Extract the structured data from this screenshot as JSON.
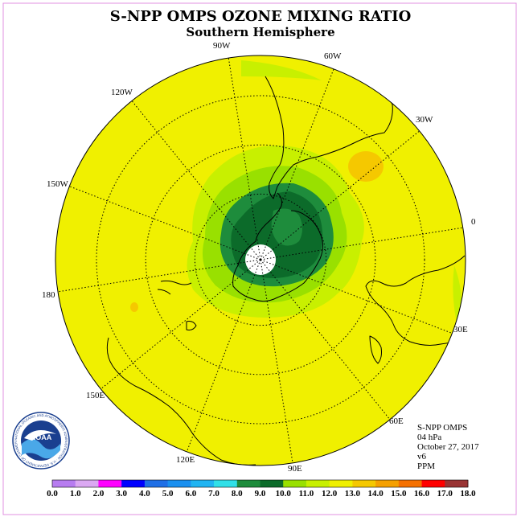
{
  "title": "S-NPP OMPS OZONE MIXING RATIO",
  "subtitle": "Southern Hemisphere",
  "longitude_labels": {
    "lon_0": "0",
    "lon_30w": "30W",
    "lon_60w": "60W",
    "lon_90w": "90W",
    "lon_120w": "120W",
    "lon_150w": "150W",
    "lon_180": "180",
    "lon_150e": "150E",
    "lon_120e": "120E",
    "lon_90e": "90E",
    "lon_60e": "60E",
    "lon_30e": "30E"
  },
  "info": {
    "instrument": "S-NPP OMPS",
    "pressure": "04 hPa",
    "date": "October 27, 2017",
    "version": "v6",
    "units": "PPM"
  },
  "logo": {
    "text": "NOAA",
    "ring_text": "NATIONAL OCEANIC AND ATMOSPHERIC ADMINISTRATION · U.S. DEPARTMENT OF COMMERCE"
  },
  "colorbar": {
    "ticks": [
      "0.0",
      "1.0",
      "2.0",
      "3.0",
      "4.0",
      "5.0",
      "6.0",
      "7.0",
      "8.0",
      "9.0",
      "10.0",
      "11.0",
      "12.0",
      "13.0",
      "14.0",
      "15.0",
      "16.0",
      "17.0",
      "18.0"
    ],
    "colors": [
      "#b77cf0",
      "#dba8f2",
      "#ff00ff",
      "#0000ff",
      "#1f6fe6",
      "#1a90f0",
      "#20b4f2",
      "#30e0e8",
      "#1e8c3c",
      "#0c6b2a",
      "#99e000",
      "#c8f000",
      "#f0f000",
      "#f5c800",
      "#f5a000",
      "#f57000",
      "#ff0000",
      "#993333"
    ]
  },
  "map_colors": {
    "background": "#f0f000",
    "outer_light": "#c8f000",
    "mid_green": "#99e000",
    "green": "#1e8c3c",
    "dark_green": "#0c6b2a",
    "orange": "#f5c800"
  }
}
